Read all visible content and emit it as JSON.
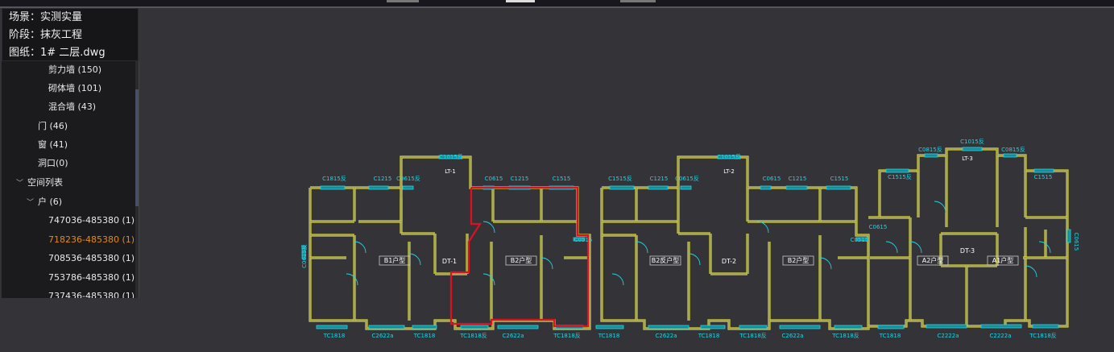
{
  "info": {
    "scene": "场景：实测实量",
    "stage": "阶段：抹灰工程",
    "drawing": "图纸：1# 二层.dwg"
  },
  "tree": {
    "items": [
      {
        "label": "剪力墙 (150)"
      },
      {
        "label": "砌体墙 (101)"
      },
      {
        "label": "混合墙 (43)"
      },
      {
        "label": "门 (46)"
      },
      {
        "label": "窗 (41)"
      },
      {
        "label": "洞口(0)"
      },
      {
        "label": "空间列表"
      },
      {
        "label": "户 (6)"
      },
      {
        "label": "747036-485380 (1)"
      },
      {
        "label": "718236-485380 (1)",
        "selected": true
      },
      {
        "label": "708536-485380 (1)"
      },
      {
        "label": "753786-485380 (1)"
      },
      {
        "label": "737436-485380 (1)"
      }
    ]
  },
  "plan": {
    "colors": {
      "wall": "#d8d43a",
      "window": "#1fd6e6",
      "highlight": "#e01020",
      "background": "#333338"
    },
    "top_labels": [
      "C1815反",
      "C1215",
      "C0615反",
      "C1015反",
      "C0615",
      "C1215",
      "C1515",
      "C1515反",
      "C1215",
      "C0615反",
      "C1015反",
      "C0615",
      "C1215",
      "C1515",
      "C0815反",
      "C1015反",
      "C0815反",
      "C1515反",
      "C1515"
    ],
    "bottom_labels": [
      "TC1818",
      "C2622a",
      "TC1818",
      "TC1818反",
      "C2622a",
      "TC1818反",
      "TC1818",
      "C2622a",
      "TC1818",
      "TC1818反",
      "C2622a",
      "TC1818反",
      "TC1818",
      "C2222a",
      "C2222a",
      "TC1818反"
    ],
    "stairs": [
      "LT-1",
      "LT-2",
      "LT-3"
    ],
    "elevators": [
      "DT-1",
      "DT-2",
      "DT-3"
    ],
    "units": [
      "B1户型",
      "B2户型",
      "B2反户型",
      "B2户型",
      "A2户型",
      "A1户型"
    ],
    "side_labels": [
      "C0615反",
      "C0515",
      "C0515",
      "C0615"
    ]
  }
}
